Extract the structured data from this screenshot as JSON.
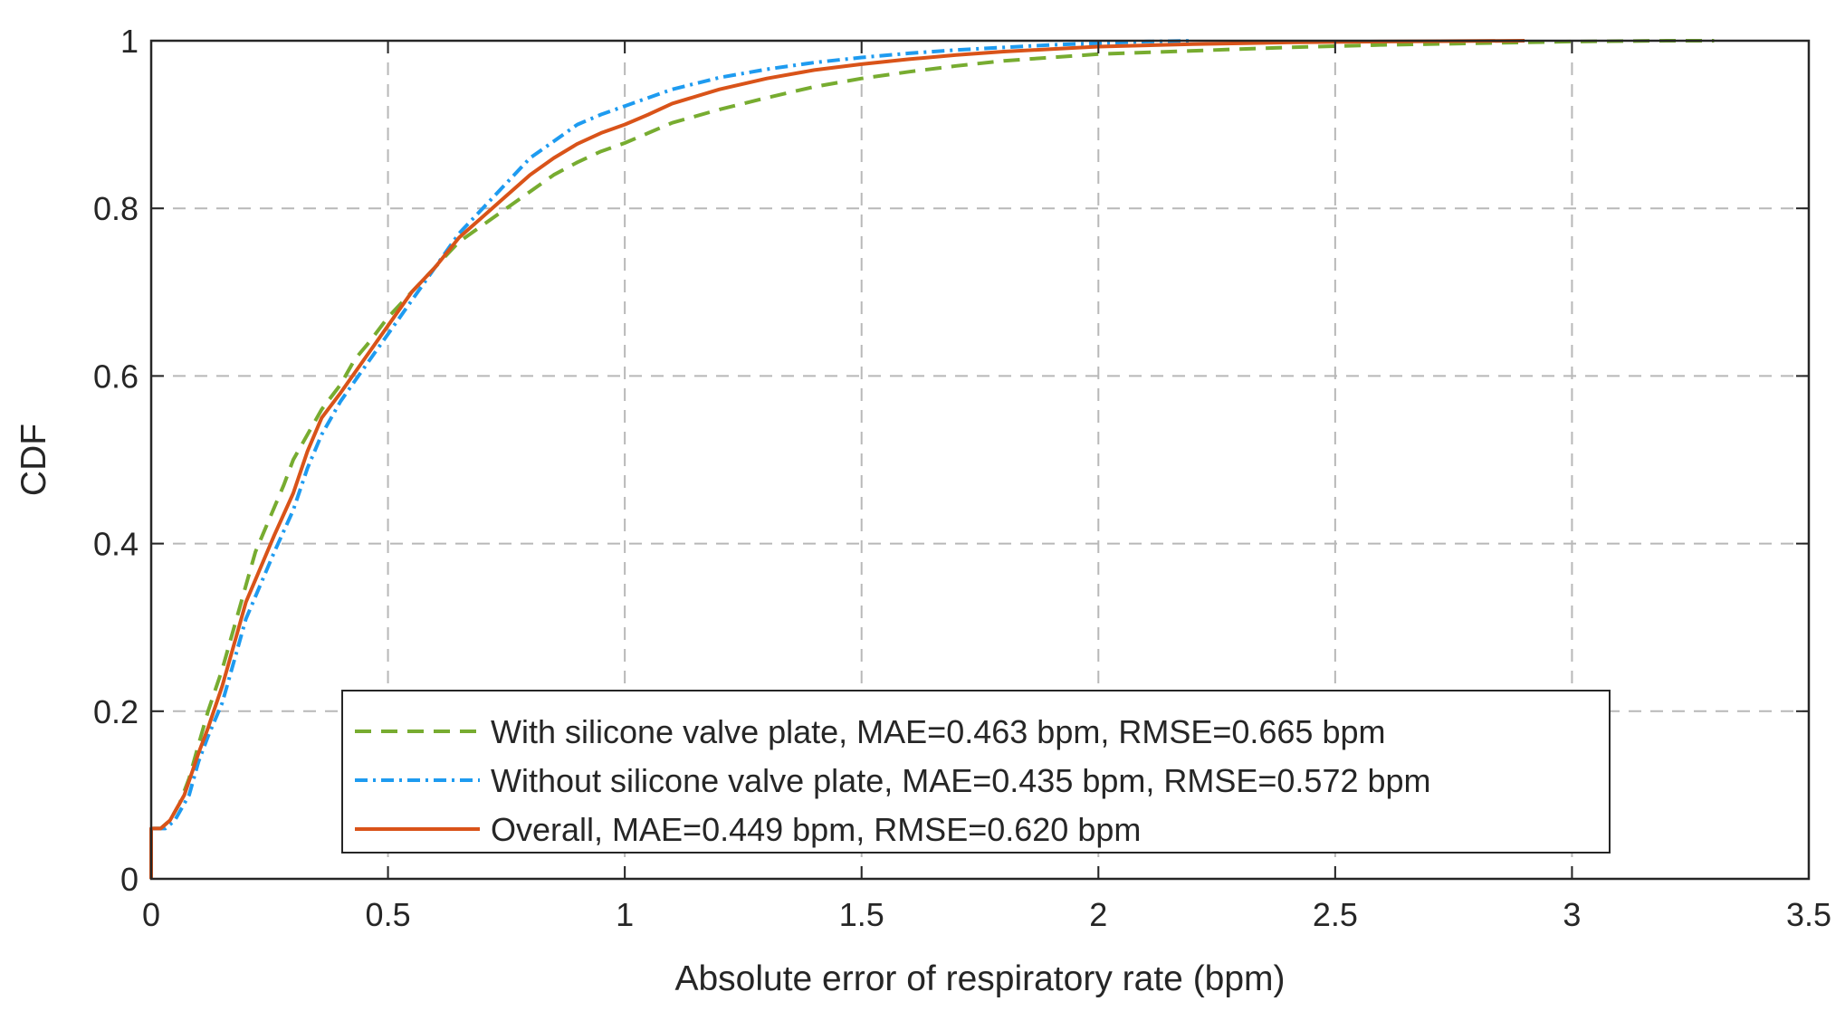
{
  "chart_data": {
    "type": "line",
    "title": "",
    "xlabel": "Absolute error of respiratory rate (bpm)",
    "ylabel": "CDF",
    "xlim": [
      0,
      3.5
    ],
    "ylim": [
      0,
      1
    ],
    "grid": true,
    "legend_position": "bottom-center",
    "x_ticks": [
      0,
      0.5,
      1,
      1.5,
      2,
      2.5,
      3,
      3.5
    ],
    "x_tick_labels": [
      "0",
      "0.5",
      "1",
      "1.5",
      "2",
      "2.5",
      "3",
      "3.5"
    ],
    "y_ticks": [
      0,
      0.2,
      0.4,
      0.6,
      0.8,
      1
    ],
    "y_tick_labels": [
      "0",
      "0.2",
      "0.4",
      "0.6",
      "0.8",
      "1"
    ],
    "series": [
      {
        "name": "With silicone valve plate, MAE=0.463 bpm, RMSE=0.665 bpm",
        "color": "#77ac30",
        "style": "dashed",
        "points": [
          [
            0,
            0
          ],
          [
            0,
            0.06
          ],
          [
            0.02,
            0.06
          ],
          [
            0.04,
            0.07
          ],
          [
            0.06,
            0.09
          ],
          [
            0.08,
            0.12
          ],
          [
            0.1,
            0.16
          ],
          [
            0.12,
            0.2
          ],
          [
            0.15,
            0.25
          ],
          [
            0.18,
            0.31
          ],
          [
            0.2,
            0.35
          ],
          [
            0.22,
            0.39
          ],
          [
            0.25,
            0.43
          ],
          [
            0.28,
            0.47
          ],
          [
            0.3,
            0.5
          ],
          [
            0.33,
            0.53
          ],
          [
            0.36,
            0.56
          ],
          [
            0.4,
            0.59
          ],
          [
            0.43,
            0.62
          ],
          [
            0.46,
            0.64
          ],
          [
            0.5,
            0.67
          ],
          [
            0.55,
            0.7
          ],
          [
            0.6,
            0.73
          ],
          [
            0.65,
            0.76
          ],
          [
            0.7,
            0.78
          ],
          [
            0.75,
            0.8
          ],
          [
            0.8,
            0.82
          ],
          [
            0.85,
            0.84
          ],
          [
            0.9,
            0.855
          ],
          [
            0.95,
            0.868
          ],
          [
            1.0,
            0.878
          ],
          [
            1.05,
            0.89
          ],
          [
            1.1,
            0.902
          ],
          [
            1.2,
            0.918
          ],
          [
            1.3,
            0.932
          ],
          [
            1.4,
            0.945
          ],
          [
            1.5,
            0.955
          ],
          [
            1.6,
            0.963
          ],
          [
            1.7,
            0.97
          ],
          [
            1.8,
            0.976
          ],
          [
            1.9,
            0.98
          ],
          [
            2.0,
            0.984
          ],
          [
            2.2,
            0.988
          ],
          [
            2.4,
            0.992
          ],
          [
            2.6,
            0.995
          ],
          [
            2.8,
            0.997
          ],
          [
            3.0,
            0.999
          ],
          [
            3.2,
            1.0
          ],
          [
            3.3,
            1.0
          ]
        ]
      },
      {
        "name": "Without silicone valve plate, MAE=0.435 bpm, RMSE=0.572 bpm",
        "color": "#1e9bf0",
        "style": "dashdot",
        "points": [
          [
            0,
            0
          ],
          [
            0,
            0.06
          ],
          [
            0.03,
            0.06
          ],
          [
            0.05,
            0.07
          ],
          [
            0.08,
            0.1
          ],
          [
            0.1,
            0.14
          ],
          [
            0.12,
            0.17
          ],
          [
            0.15,
            0.21
          ],
          [
            0.18,
            0.27
          ],
          [
            0.2,
            0.31
          ],
          [
            0.23,
            0.35
          ],
          [
            0.26,
            0.39
          ],
          [
            0.3,
            0.44
          ],
          [
            0.33,
            0.49
          ],
          [
            0.36,
            0.53
          ],
          [
            0.4,
            0.57
          ],
          [
            0.45,
            0.61
          ],
          [
            0.5,
            0.65
          ],
          [
            0.55,
            0.69
          ],
          [
            0.6,
            0.73
          ],
          [
            0.65,
            0.77
          ],
          [
            0.7,
            0.8
          ],
          [
            0.75,
            0.83
          ],
          [
            0.8,
            0.86
          ],
          [
            0.85,
            0.88
          ],
          [
            0.9,
            0.9
          ],
          [
            0.95,
            0.912
          ],
          [
            1.0,
            0.922
          ],
          [
            1.05,
            0.932
          ],
          [
            1.1,
            0.942
          ],
          [
            1.2,
            0.956
          ],
          [
            1.3,
            0.966
          ],
          [
            1.4,
            0.974
          ],
          [
            1.5,
            0.98
          ],
          [
            1.6,
            0.985
          ],
          [
            1.7,
            0.989
          ],
          [
            1.8,
            0.992
          ],
          [
            1.9,
            0.995
          ],
          [
            2.0,
            0.997
          ],
          [
            2.1,
            0.999
          ],
          [
            2.2,
            1.0
          ]
        ]
      },
      {
        "name": "Overall, MAE=0.449 bpm, RMSE=0.620 bpm",
        "color": "#d95319",
        "style": "solid",
        "points": [
          [
            0,
            0
          ],
          [
            0,
            0.06
          ],
          [
            0.02,
            0.06
          ],
          [
            0.04,
            0.07
          ],
          [
            0.07,
            0.1
          ],
          [
            0.1,
            0.15
          ],
          [
            0.12,
            0.18
          ],
          [
            0.15,
            0.23
          ],
          [
            0.18,
            0.29
          ],
          [
            0.2,
            0.33
          ],
          [
            0.23,
            0.37
          ],
          [
            0.26,
            0.41
          ],
          [
            0.3,
            0.46
          ],
          [
            0.33,
            0.51
          ],
          [
            0.36,
            0.55
          ],
          [
            0.4,
            0.58
          ],
          [
            0.45,
            0.62
          ],
          [
            0.5,
            0.66
          ],
          [
            0.55,
            0.7
          ],
          [
            0.6,
            0.73
          ],
          [
            0.65,
            0.765
          ],
          [
            0.7,
            0.79
          ],
          [
            0.75,
            0.815
          ],
          [
            0.8,
            0.84
          ],
          [
            0.85,
            0.86
          ],
          [
            0.9,
            0.877
          ],
          [
            0.95,
            0.89
          ],
          [
            1.0,
            0.9
          ],
          [
            1.05,
            0.912
          ],
          [
            1.1,
            0.925
          ],
          [
            1.2,
            0.942
          ],
          [
            1.3,
            0.955
          ],
          [
            1.4,
            0.965
          ],
          [
            1.5,
            0.972
          ],
          [
            1.6,
            0.978
          ],
          [
            1.7,
            0.983
          ],
          [
            1.8,
            0.987
          ],
          [
            1.9,
            0.99
          ],
          [
            2.0,
            0.993
          ],
          [
            2.2,
            0.996
          ],
          [
            2.4,
            0.998
          ],
          [
            2.6,
            0.999
          ],
          [
            2.9,
            1.0
          ]
        ]
      }
    ]
  }
}
